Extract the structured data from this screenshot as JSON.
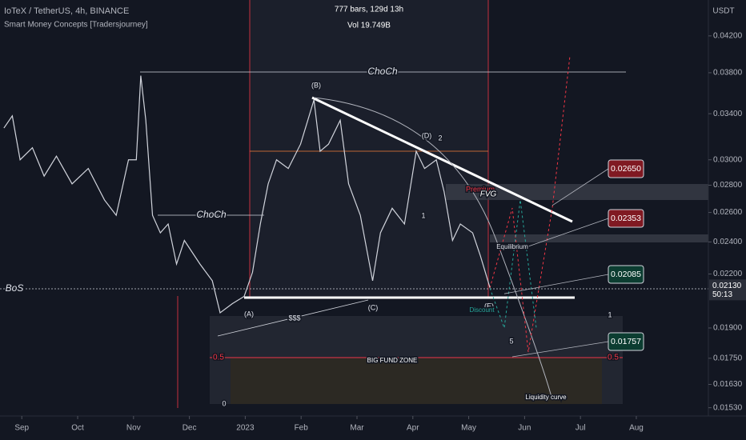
{
  "chart_data": {
    "type": "line",
    "log_scale": true,
    "symbol": "IoTeX / TetherUS, 4h, BINANCE",
    "indicator": "Smart Money Concepts [Tradersjourney]",
    "range_info": "777 bars, 129d 13h",
    "volume_info": "Vol 19.749B",
    "currency": "USDT",
    "color": "#d1d4dc",
    "x": [
      -0.32,
      -0.17,
      -0.03,
      0.19,
      0.4,
      0.62,
      0.9,
      1.19,
      1.48,
      1.69,
      1.91,
      2.05,
      2.13,
      2.22,
      2.34,
      2.48,
      2.62,
      2.77,
      2.91,
      3.19,
      3.41,
      3.55,
      3.77,
      3.98,
      4.13,
      4.27,
      4.41,
      4.56,
      4.77,
      4.99,
      5.23,
      5.34,
      5.49,
      5.7,
      5.85,
      6.06,
      6.28,
      6.42,
      6.63,
      6.85,
      7.06,
      7.21,
      7.42,
      7.56,
      7.71,
      7.85,
      8.07,
      8.21,
      8.38
    ],
    "values": [
      0.0327,
      0.0338,
      0.03,
      0.031,
      0.0287,
      0.0303,
      0.0281,
      0.0293,
      0.0269,
      0.0258,
      0.03,
      0.03,
      0.0377,
      0.0334,
      0.0258,
      0.0246,
      0.0252,
      0.0226,
      0.0241,
      0.0226,
      0.0216,
      0.0198,
      0.0203,
      0.0207,
      0.0221,
      0.0252,
      0.0281,
      0.03,
      0.0293,
      0.0313,
      0.0353,
      0.0307,
      0.0313,
      0.0334,
      0.0281,
      0.0258,
      0.0216,
      0.0246,
      0.0263,
      0.0252,
      0.0307,
      0.0293,
      0.03,
      0.0275,
      0.0241,
      0.0252,
      0.0246,
      0.0231,
      0.0212
    ],
    "xlim": [
      -0.39,
      12.29
    ],
    "xticks": [
      {
        "value": 0,
        "label": "Sep"
      },
      {
        "value": 1,
        "label": "Oct"
      },
      {
        "value": 2,
        "label": "Nov"
      },
      {
        "value": 3,
        "label": "Dec"
      },
      {
        "value": 4,
        "label": "2023"
      },
      {
        "value": 5,
        "label": "Feb"
      },
      {
        "value": 6,
        "label": "Mar"
      },
      {
        "value": 7,
        "label": "Apr"
      },
      {
        "value": 8,
        "label": "May"
      },
      {
        "value": 9,
        "label": "Jun"
      },
      {
        "value": 10,
        "label": "Jul"
      },
      {
        "value": 11,
        "label": "Aug"
      }
    ],
    "ylim": [
      0.01496,
      0.0463
    ],
    "yticks": [
      {
        "value": 0.042,
        "label": "0.04200"
      },
      {
        "value": 0.038,
        "label": "0.03800"
      },
      {
        "value": 0.034,
        "label": "0.03400"
      },
      {
        "value": 0.03,
        "label": "0.03000"
      },
      {
        "value": 0.028,
        "label": "0.02800"
      },
      {
        "value": 0.026,
        "label": "0.02600"
      },
      {
        "value": 0.024,
        "label": "0.02400"
      },
      {
        "value": 0.022,
        "label": "0.02200"
      },
      {
        "value": 0.019,
        "label": "0.01900"
      },
      {
        "value": 0.0175,
        "label": "0.01750"
      },
      {
        "value": 0.0163,
        "label": "0.01630"
      },
      {
        "value": 0.0153,
        "label": "0.01530"
      }
    ],
    "last_price": {
      "value": 0.0213,
      "label": "0.02130",
      "countdown": "50:13"
    },
    "targets": {
      "values": [
        0.0265,
        0.02353,
        0.02085,
        0.01757
      ],
      "value_labels": [
        "0.02650",
        "0.02353",
        "0.02085",
        "0.01757"
      ],
      "colors": [
        "#801922",
        "#801922",
        "#0c3d31",
        "#0c3d31"
      ]
    },
    "annotations": [
      "ChoCh",
      "ChoCh",
      "BoS",
      "(A)",
      "(B)",
      "(C)",
      "(D)",
      "(E)",
      "2",
      "1",
      "5",
      "$$$",
      "Premium",
      "FVG",
      "Equilibrium",
      "Discount",
      "BIG FUND ZONE",
      "Liquidity curve",
      "0.5",
      "0.5",
      "1",
      "0"
    ]
  }
}
